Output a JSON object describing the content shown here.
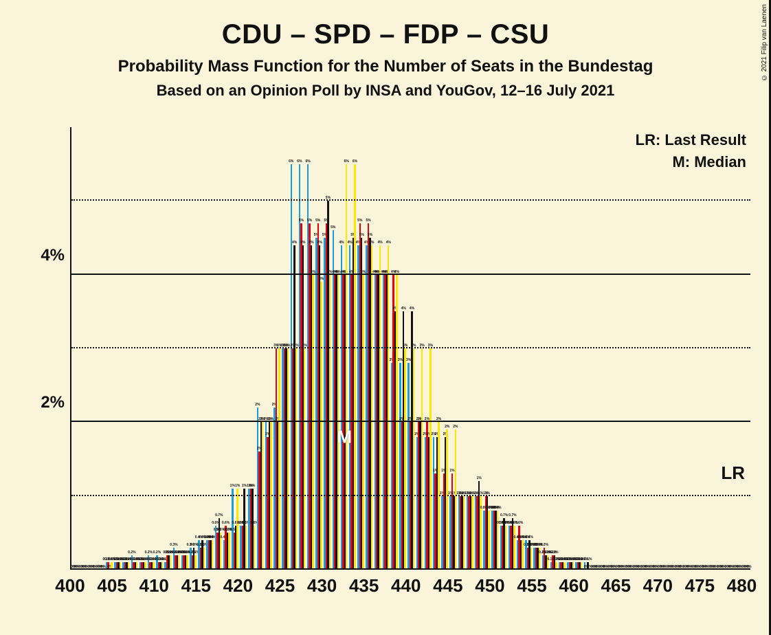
{
  "title": "CDU – SPD – FDP – CSU",
  "subtitle1": "Probability Mass Function for the Number of Seats in the Bundestag",
  "subtitle2": "Based on an Opinion Poll by INSA and YouGov, 12–16 July 2021",
  "copyright": "© 2021 Filip van Laenen",
  "legend": {
    "lr": "LR: Last Result",
    "m": "M: Median"
  },
  "lr_tag": "LR",
  "median_tag": "M",
  "background_color": "#faf5da",
  "axis": {
    "x_start": 400,
    "x_end": 480,
    "x_step": 1,
    "x_label_step": 5,
    "y_max": 6.0,
    "y_ticks_solid": [
      2,
      4
    ],
    "y_ticks_dotted": [
      1,
      3,
      5
    ],
    "y_lr_line": 0.85
  },
  "series": [
    {
      "name": "CDU",
      "color": "#1b9dd9"
    },
    {
      "name": "SPD",
      "color": "#e3000f"
    },
    {
      "name": "FDP",
      "color": "#111111"
    },
    {
      "name": "CSU",
      "color": "#ffe600"
    }
  ],
  "median_at": 432,
  "data": {
    "400": [
      0,
      0,
      0,
      0
    ],
    "401": [
      0,
      0,
      0,
      0
    ],
    "402": [
      0,
      0,
      0,
      0
    ],
    "403": [
      0,
      0,
      0,
      0
    ],
    "404": [
      0.1,
      0.1,
      0,
      0.1
    ],
    "405": [
      0.1,
      0.1,
      0.1,
      0.1
    ],
    "406": [
      0.1,
      0.1,
      0.1,
      0.1
    ],
    "407": [
      0.2,
      0.1,
      0.1,
      0.1
    ],
    "408": [
      0.1,
      0.1,
      0.1,
      0.1
    ],
    "409": [
      0.2,
      0.1,
      0.1,
      0.1
    ],
    "410": [
      0.2,
      0.1,
      0.1,
      0.1
    ],
    "411": [
      0.1,
      0.2,
      0.2,
      0.2
    ],
    "412": [
      0.3,
      0.2,
      0.2,
      0.2
    ],
    "413": [
      0.2,
      0.2,
      0.2,
      0.2
    ],
    "414": [
      0.3,
      0.2,
      0.3,
      0.2
    ],
    "415": [
      0.4,
      0.3,
      0.4,
      0.3
    ],
    "416": [
      0.4,
      0.4,
      0.4,
      0.4
    ],
    "417": [
      0.6,
      0.5,
      0.7,
      0.5
    ],
    "418": [
      0.4,
      0.6,
      0.5,
      0.5
    ],
    "419": [
      1.1,
      0.5,
      0.6,
      1.1
    ],
    "420": [
      0.6,
      0.6,
      1.1,
      0.6
    ],
    "421": [
      1.1,
      1.1,
      1.1,
      0.6
    ],
    "422": [
      2.2,
      1.6,
      2.0,
      2.0
    ],
    "423": [
      2.0,
      1.8,
      2.0,
      2.0
    ],
    "424": [
      2.2,
      3.0,
      2.0,
      3.0
    ],
    "425": [
      3.0,
      3.0,
      3.0,
      3.0
    ],
    "426": [
      5.5,
      3.0,
      4.4,
      3.0
    ],
    "427": [
      5.5,
      4.7,
      4.4,
      3.0
    ],
    "428": [
      5.5,
      4.7,
      4.4,
      4.0
    ],
    "429": [
      4.5,
      4.7,
      4.4,
      3.9
    ],
    "430": [
      4.5,
      4.7,
      5.0,
      4.0
    ],
    "431": [
      4.6,
      4.0,
      4.0,
      4.0
    ],
    "432": [
      4.4,
      4.0,
      4.0,
      5.5
    ],
    "433": [
      4.4,
      4.0,
      4.5,
      5.5
    ],
    "434": [
      4.4,
      4.7,
      4.5,
      4.0
    ],
    "435": [
      4.4,
      4.7,
      4.5,
      4.4
    ],
    "436": [
      4.0,
      4.0,
      4.0,
      4.4
    ],
    "437": [
      4.0,
      4.0,
      4.0,
      4.4
    ],
    "438": [
      2.8,
      4.0,
      3.5,
      4.0
    ],
    "439": [
      2.8,
      2.0,
      3.5,
      3.0
    ],
    "440": [
      2.8,
      2.0,
      3.5,
      3.0
    ],
    "441": [
      1.8,
      2.0,
      2.0,
      3.0
    ],
    "442": [
      1.8,
      2.0,
      1.8,
      3.0
    ],
    "443": [
      1.8,
      1.3,
      1.8,
      2.0
    ],
    "444": [
      1.0,
      1.3,
      1.8,
      1.9
    ],
    "445": [
      1.0,
      1.3,
      1.0,
      1.9
    ],
    "446": [
      1.0,
      1.0,
      1.0,
      1.0
    ],
    "447": [
      1.0,
      1.0,
      1.0,
      1.0
    ],
    "448": [
      1.0,
      1.0,
      1.2,
      1.0
    ],
    "449": [
      0.8,
      1.0,
      1.0,
      0.8
    ],
    "450": [
      0.8,
      0.8,
      0.8,
      0.8
    ],
    "451": [
      0.6,
      0.6,
      0.7,
      0.6
    ],
    "452": [
      0.6,
      0.6,
      0.7,
      0.6
    ],
    "453": [
      0.4,
      0.6,
      0.4,
      0.4
    ],
    "454": [
      0.4,
      0.3,
      0.4,
      0.3
    ],
    "455": [
      0.3,
      0.3,
      0.3,
      0.3
    ],
    "456": [
      0.2,
      0.3,
      0.2,
      0.2
    ],
    "457": [
      0.1,
      0.2,
      0.2,
      0.1
    ],
    "458": [
      0.1,
      0.1,
      0.1,
      0.1
    ],
    "459": [
      0.1,
      0.1,
      0.1,
      0.1
    ],
    "460": [
      0.1,
      0.1,
      0.1,
      0.1
    ],
    "461": [
      0.1,
      0,
      0.1,
      0
    ],
    "462": [
      0,
      0,
      0,
      0
    ],
    "463": [
      0,
      0,
      0,
      0
    ],
    "464": [
      0,
      0,
      0,
      0
    ],
    "465": [
      0,
      0,
      0,
      0
    ],
    "466": [
      0,
      0,
      0,
      0
    ],
    "467": [
      0,
      0,
      0,
      0
    ],
    "468": [
      0,
      0,
      0,
      0
    ],
    "469": [
      0,
      0,
      0,
      0
    ],
    "470": [
      0,
      0,
      0,
      0
    ],
    "471": [
      0,
      0,
      0,
      0
    ],
    "472": [
      0,
      0,
      0,
      0
    ],
    "473": [
      0,
      0,
      0,
      0
    ],
    "474": [
      0,
      0,
      0,
      0
    ],
    "475": [
      0,
      0,
      0,
      0
    ],
    "476": [
      0,
      0,
      0,
      0
    ],
    "477": [
      0,
      0,
      0,
      0
    ],
    "478": [
      0,
      0,
      0,
      0
    ],
    "479": [
      0,
      0,
      0,
      0
    ],
    "480": [
      0,
      0,
      0,
      0
    ]
  }
}
